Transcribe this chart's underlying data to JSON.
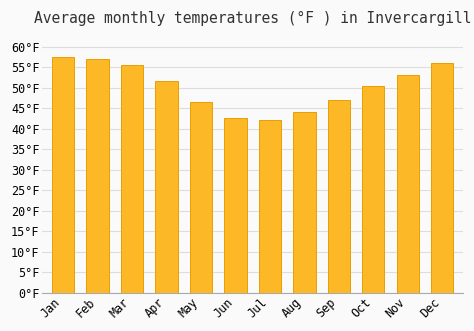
{
  "months": [
    "Jan",
    "Feb",
    "Mar",
    "Apr",
    "May",
    "Jun",
    "Jul",
    "Aug",
    "Sep",
    "Oct",
    "Nov",
    "Dec"
  ],
  "values": [
    57.5,
    57.0,
    55.5,
    51.5,
    46.5,
    42.5,
    42.0,
    44.0,
    47.0,
    50.5,
    53.0,
    56.0
  ],
  "bar_color": "#FDB827",
  "bar_edge_color": "#E8A000",
  "background_color": "#FAFAFA",
  "grid_color": "#DDDDDD",
  "title": "Average monthly temperatures (°F ) in Invercargill",
  "title_fontsize": 10.5,
  "tick_label_fontsize": 8.5,
  "ylim": [
    0,
    63
  ],
  "ytick_values": [
    0,
    5,
    10,
    15,
    20,
    25,
    30,
    35,
    40,
    45,
    50,
    55,
    60
  ],
  "ylabel_format": "°F"
}
